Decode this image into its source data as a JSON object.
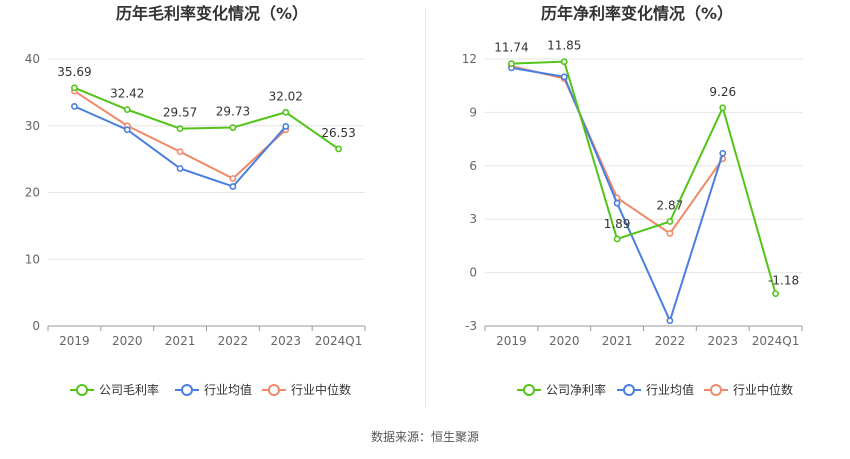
{
  "source": "数据来源：恒生聚源",
  "chart_data": [
    {
      "type": "line",
      "title": "历年毛利率变化情况（%）",
      "categories": [
        "2019",
        "2020",
        "2021",
        "2022",
        "2023",
        "2024Q1"
      ],
      "y_ticks": [
        0,
        10,
        20,
        30,
        40
      ],
      "ylim": [
        0,
        40
      ],
      "grid": true,
      "legend_position": "bottom",
      "series": [
        {
          "name": "公司毛利率",
          "color": "#52c41a",
          "values": [
            35.69,
            32.42,
            29.57,
            29.73,
            32.02,
            26.53
          ],
          "labels": [
            "35.69",
            "32.42",
            "29.57",
            "29.73",
            "32.02",
            "26.53"
          ]
        },
        {
          "name": "行业均值",
          "color": "#4a7ee0",
          "values": [
            32.9,
            29.4,
            23.6,
            20.9,
            29.9,
            null
          ]
        },
        {
          "name": "行业中位数",
          "color": "#f0896a",
          "values": [
            35.2,
            30.0,
            26.1,
            22.1,
            29.4,
            null
          ]
        }
      ]
    },
    {
      "type": "line",
      "title": "历年净利率变化情况（%）",
      "categories": [
        "2019",
        "2020",
        "2021",
        "2022",
        "2023",
        "2024Q1"
      ],
      "y_ticks": [
        -3,
        0,
        3,
        6,
        9,
        12
      ],
      "ylim": [
        -3,
        12
      ],
      "grid": true,
      "legend_position": "bottom",
      "series": [
        {
          "name": "公司净利率",
          "color": "#52c41a",
          "values": [
            11.74,
            11.85,
            1.89,
            2.87,
            9.26,
            -1.18
          ],
          "labels": [
            "11.74",
            "11.85",
            "1.89",
            "2.87",
            "9.26",
            "-1.18"
          ]
        },
        {
          "name": "行业均值",
          "color": "#4a7ee0",
          "values": [
            11.5,
            11.0,
            3.9,
            -2.7,
            6.7,
            null
          ]
        },
        {
          "name": "行业中位数",
          "color": "#f0896a",
          "values": [
            11.6,
            10.9,
            4.2,
            2.2,
            6.4,
            null
          ]
        }
      ]
    }
  ]
}
